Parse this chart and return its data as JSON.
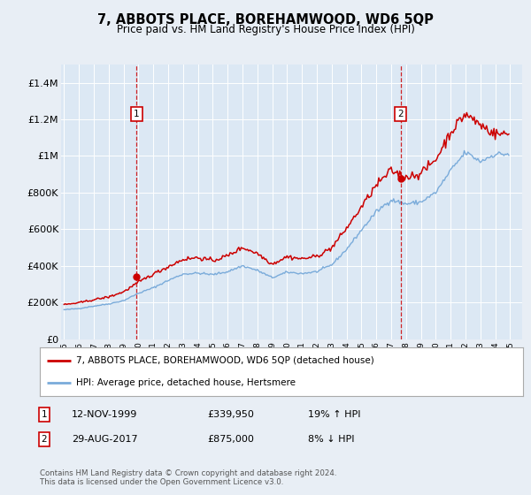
{
  "title": "7, ABBOTS PLACE, BOREHAMWOOD, WD6 5QP",
  "subtitle": "Price paid vs. HM Land Registry's House Price Index (HPI)",
  "background_color": "#e8eef5",
  "plot_bg_color": "#dce8f4",
  "grid_color": "#ffffff",
  "sale1": {
    "date": "12-NOV-1999",
    "price": 339950,
    "label": "19% ↑ HPI",
    "x": 1999.87
  },
  "sale2": {
    "date": "29-AUG-2017",
    "price": 875000,
    "label": "8% ↓ HPI",
    "x": 2017.65
  },
  "legend_property": "7, ABBOTS PLACE, BOREHAMWOOD, WD6 5QP (detached house)",
  "legend_hpi": "HPI: Average price, detached house, Hertsmere",
  "footer": "Contains HM Land Registry data © Crown copyright and database right 2024.\nThis data is licensed under the Open Government Licence v3.0.",
  "hpi_color": "#7aabda",
  "property_color": "#cc0000",
  "dashed_color": "#cc0000",
  "ylim": [
    0,
    1500000
  ],
  "yticks": [
    0,
    200000,
    400000,
    600000,
    800000,
    1000000,
    1200000,
    1400000
  ],
  "ytick_labels": [
    "£0",
    "£200K",
    "£400K",
    "£600K",
    "£800K",
    "£1M",
    "£1.2M",
    "£1.4M"
  ],
  "xmin": 1994.8,
  "xmax": 2025.8,
  "hpi_year_prices": {
    "1995": 160000,
    "1996": 167000,
    "1997": 180000,
    "1998": 192000,
    "1999": 210000,
    "2000": 250000,
    "2001": 280000,
    "2002": 320000,
    "2003": 355000,
    "2004": 360000,
    "2005": 352000,
    "2006": 368000,
    "2007": 400000,
    "2008": 375000,
    "2009": 335000,
    "2010": 365000,
    "2011": 358000,
    "2012": 368000,
    "2013": 405000,
    "2014": 490000,
    "2015": 595000,
    "2016": 695000,
    "2017": 760000,
    "2018": 738000,
    "2019": 748000,
    "2020": 800000,
    "2021": 920000,
    "2022": 1020000,
    "2023": 970000,
    "2024": 1010000,
    "2025": 1010000
  },
  "prop_year_prices": {
    "1995": 188000,
    "1996": 198000,
    "1997": 215000,
    "1998": 230000,
    "1999": 258000,
    "2000": 310000,
    "2001": 355000,
    "2002": 395000,
    "2003": 435000,
    "2004": 445000,
    "2005": 428000,
    "2006": 455000,
    "2007": 500000,
    "2008": 468000,
    "2009": 410000,
    "2010": 450000,
    "2011": 438000,
    "2012": 452000,
    "2013": 498000,
    "2014": 605000,
    "2015": 720000,
    "2016": 840000,
    "2017": 920000,
    "2018": 885000,
    "2019": 905000,
    "2020": 980000,
    "2021": 1130000,
    "2022": 1230000,
    "2023": 1170000,
    "2024": 1120000,
    "2025": 1120000
  }
}
